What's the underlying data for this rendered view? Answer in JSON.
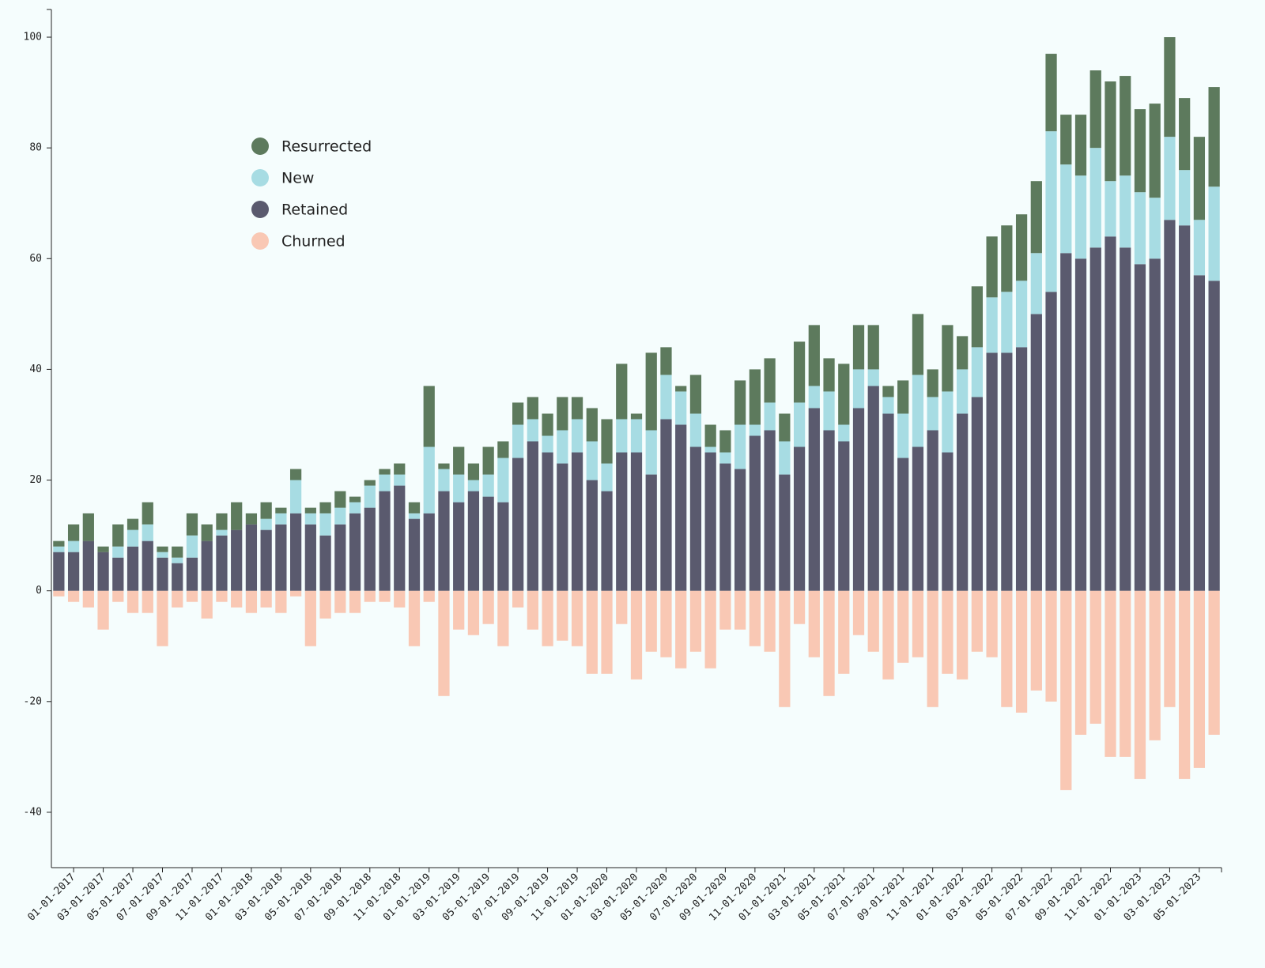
{
  "chart_data": {
    "type": "stacked_bar",
    "categories": [
      null,
      "01-01-2017",
      null,
      "03-01-2017",
      null,
      "05-01-2017",
      null,
      "07-01-2017",
      null,
      "09-01-2017",
      null,
      "11-01-2017",
      null,
      "01-01-2018",
      null,
      "03-01-2018",
      null,
      "05-01-2018",
      null,
      "07-01-2018",
      null,
      "09-01-2018",
      null,
      "11-01-2018",
      null,
      "01-01-2019",
      null,
      "03-01-2019",
      null,
      "05-01-2019",
      null,
      "07-01-2019",
      null,
      "09-01-2019",
      null,
      "11-01-2019",
      null,
      "01-01-2020",
      null,
      "03-01-2020",
      null,
      "05-01-2020",
      null,
      "07-01-2020",
      null,
      "09-01-2020",
      null,
      "11-01-2020",
      null,
      "01-01-2021",
      null,
      "03-01-2021",
      null,
      "05-01-2021",
      null,
      "07-01-2021",
      null,
      "09-01-2021",
      null,
      "11-01-2021",
      null,
      "01-01-2022",
      null,
      "03-01-2022",
      null,
      "05-01-2022",
      null,
      "07-01-2022",
      null,
      "09-01-2022",
      null,
      "11-01-2022",
      null,
      "01-01-2023",
      null,
      "03-01-2023",
      null,
      "05-01-2023",
      null
    ],
    "series": [
      {
        "name": "Resurrected",
        "color": "#5d7a5d",
        "values": [
          1,
          3,
          5,
          1,
          4,
          2,
          4,
          1,
          2,
          4,
          3,
          3,
          5,
          2,
          3,
          1,
          2,
          1,
          2,
          3,
          1,
          1,
          1,
          2,
          2,
          11,
          1,
          5,
          3,
          5,
          3,
          4,
          4,
          4,
          6,
          4,
          6,
          8,
          10,
          1,
          14,
          5,
          1,
          7,
          4,
          4,
          8,
          10,
          8,
          5,
          11,
          11,
          6,
          11,
          8,
          8,
          2,
          6,
          11,
          5,
          12,
          6,
          11,
          11,
          12,
          12,
          13,
          14,
          9,
          11,
          14,
          18,
          18,
          15,
          17,
          18,
          13,
          15,
          18
        ]
      },
      {
        "name": "New",
        "color": "#a7dce3",
        "values": [
          1,
          2,
          0,
          0,
          2,
          3,
          3,
          1,
          1,
          4,
          0,
          1,
          0,
          0,
          2,
          2,
          6,
          2,
          4,
          3,
          2,
          4,
          3,
          2,
          1,
          12,
          4,
          5,
          2,
          4,
          8,
          6,
          4,
          3,
          6,
          6,
          7,
          5,
          6,
          6,
          8,
          8,
          6,
          6,
          1,
          2,
          8,
          2,
          5,
          6,
          8,
          4,
          7,
          3,
          7,
          3,
          3,
          8,
          13,
          6,
          11,
          8,
          9,
          10,
          11,
          12,
          11,
          29,
          16,
          15,
          18,
          10,
          13,
          13,
          11,
          15,
          10,
          10,
          17
        ]
      },
      {
        "name": "Retained",
        "color": "#5a5a6e",
        "values": [
          7,
          7,
          9,
          7,
          6,
          8,
          9,
          6,
          5,
          6,
          9,
          10,
          11,
          12,
          11,
          12,
          14,
          12,
          10,
          12,
          14,
          15,
          18,
          19,
          13,
          14,
          18,
          16,
          18,
          17,
          16,
          24,
          27,
          25,
          23,
          25,
          20,
          18,
          25,
          25,
          21,
          31,
          30,
          26,
          25,
          23,
          22,
          28,
          29,
          21,
          26,
          33,
          29,
          27,
          33,
          37,
          32,
          24,
          26,
          29,
          25,
          32,
          35,
          43,
          43,
          44,
          50,
          54,
          61,
          60,
          62,
          64,
          62,
          59,
          60,
          67,
          66,
          57,
          56
        ]
      },
      {
        "name": "Churned",
        "color": "#f9c8b4",
        "values": [
          -1,
          -2,
          -3,
          -7,
          -2,
          -4,
          -4,
          -10,
          -3,
          -2,
          -5,
          -2,
          -3,
          -4,
          -3,
          -4,
          -1,
          -10,
          -5,
          -4,
          -4,
          -2,
          -2,
          -3,
          -10,
          -2,
          -19,
          -7,
          -8,
          -6,
          -10,
          -3,
          -7,
          -10,
          -9,
          -10,
          -15,
          -15,
          -6,
          -16,
          -11,
          -12,
          -14,
          -11,
          -14,
          -7,
          -7,
          -10,
          -11,
          -21,
          -6,
          -12,
          -19,
          -15,
          -8,
          -11,
          -16,
          -13,
          -12,
          -21,
          -15,
          -16,
          -11,
          -12,
          -21,
          -22,
          -18,
          -20,
          -36,
          -26,
          -24,
          -30,
          -30,
          -34,
          -27,
          -21,
          -34,
          -32,
          -26
        ]
      }
    ],
    "ylim": [
      -50,
      105
    ],
    "yticks": [
      -40,
      -20,
      0,
      20,
      40,
      60,
      80,
      100
    ],
    "legend": "upper left",
    "grid": false
  }
}
